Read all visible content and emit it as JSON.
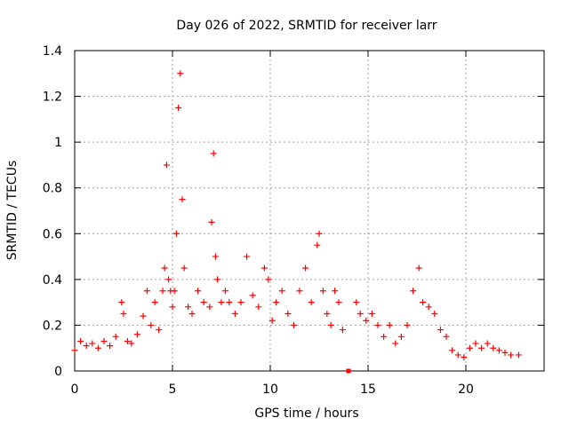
{
  "chart_data": {
    "type": "scatter",
    "title": "Day 026 of 2022, SRMTID for receiver larr",
    "xlabel": "GPS time / hours",
    "ylabel": "SRMTID / TECUs",
    "xlim": [
      0,
      24
    ],
    "ylim": [
      0,
      1.4
    ],
    "x_ticks": [
      0,
      5,
      10,
      15,
      20
    ],
    "y_ticks": [
      0,
      0.2,
      0.4,
      0.6,
      0.8,
      1,
      1.2,
      1.4
    ],
    "x_tick_labels": [
      "0",
      "5",
      "10",
      "15",
      "20"
    ],
    "y_tick_labels": [
      "0",
      "0.2",
      "0.4",
      "0.6",
      "0.8",
      "1",
      "1.2",
      "1.4"
    ],
    "grid": true,
    "marker": "plus",
    "color": "#ff0000",
    "series": [
      {
        "name": "SRMTID",
        "x": [
          0.0,
          0.3,
          0.6,
          0.9,
          1.2,
          1.5,
          1.8,
          2.1,
          2.4,
          2.5,
          2.7,
          2.9,
          3.2,
          3.5,
          3.7,
          3.9,
          4.1,
          4.3,
          4.5,
          4.6,
          4.7,
          4.8,
          4.9,
          5.0,
          5.1,
          5.2,
          5.3,
          5.4,
          5.5,
          5.6,
          5.8,
          6.0,
          6.3,
          6.6,
          6.9,
          7.0,
          7.1,
          7.2,
          7.3,
          7.5,
          7.7,
          7.9,
          8.2,
          8.5,
          8.8,
          9.1,
          9.4,
          9.7,
          9.9,
          10.1,
          10.3,
          10.6,
          10.9,
          11.2,
          11.5,
          11.8,
          12.1,
          12.4,
          12.5,
          12.7,
          12.9,
          13.1,
          13.3,
          13.5,
          13.7,
          14.0,
          14.4,
          14.6,
          14.9,
          15.2,
          15.5,
          15.8,
          16.1,
          16.4,
          16.7,
          17.0,
          17.3,
          17.6,
          17.8,
          18.1,
          18.4,
          18.7,
          19.0,
          19.3,
          19.6,
          19.9,
          20.2,
          20.5,
          20.8,
          21.1,
          21.4,
          21.7,
          22.0,
          22.3,
          22.7
        ],
        "y": [
          0.09,
          0.13,
          0.11,
          0.12,
          0.1,
          0.13,
          0.11,
          0.15,
          0.3,
          0.25,
          0.13,
          0.12,
          0.16,
          0.24,
          0.35,
          0.2,
          0.3,
          0.18,
          0.35,
          0.45,
          0.9,
          0.4,
          0.35,
          0.28,
          0.35,
          0.6,
          1.15,
          1.3,
          0.75,
          0.45,
          0.28,
          0.25,
          0.35,
          0.3,
          0.28,
          0.65,
          0.95,
          0.5,
          0.4,
          0.3,
          0.35,
          0.3,
          0.25,
          0.3,
          0.5,
          0.33,
          0.28,
          0.45,
          0.4,
          0.22,
          0.3,
          0.35,
          0.25,
          0.2,
          0.35,
          0.45,
          0.3,
          0.55,
          0.6,
          0.35,
          0.25,
          0.2,
          0.35,
          0.3,
          0.18,
          0.0,
          0.3,
          0.25,
          0.22,
          0.25,
          0.2,
          0.15,
          0.2,
          0.12,
          0.15,
          0.2,
          0.35,
          0.45,
          0.3,
          0.28,
          0.25,
          0.18,
          0.15,
          0.09,
          0.07,
          0.06,
          0.1,
          0.12,
          0.1,
          0.12,
          0.1,
          0.09,
          0.08,
          0.07,
          0.07
        ]
      }
    ]
  }
}
